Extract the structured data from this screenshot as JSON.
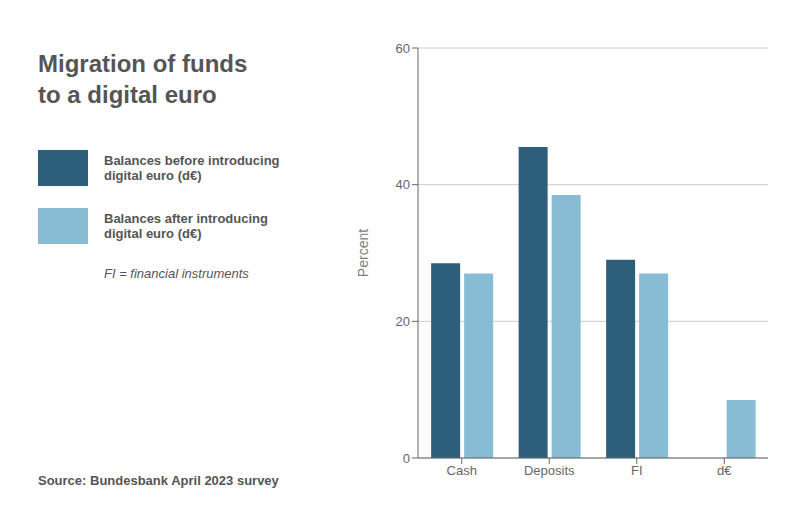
{
  "chart_data": {
    "type": "bar",
    "title": "Migration of funds\nto a digital euro",
    "categories": [
      "Cash",
      "Deposits",
      "FI",
      "d€"
    ],
    "series": [
      {
        "name": "Balances before introducing\ndigital euro (d€)",
        "color": "#2e5f7a",
        "values": [
          28.5,
          45.5,
          29.0,
          0.0
        ]
      },
      {
        "name": "Balances after introducing\ndigital euro (d€)",
        "color": "#87bcd4",
        "values": [
          27.0,
          38.5,
          27.0,
          8.5
        ]
      }
    ],
    "ylabel": "Percent",
    "ylim": [
      0,
      60
    ],
    "yticks": [
      0,
      20,
      40,
      60
    ],
    "grid": true,
    "legend": "left",
    "annotations": [
      "FI = financial instruments",
      "Source: Bundesbank April 2023 survey"
    ]
  }
}
